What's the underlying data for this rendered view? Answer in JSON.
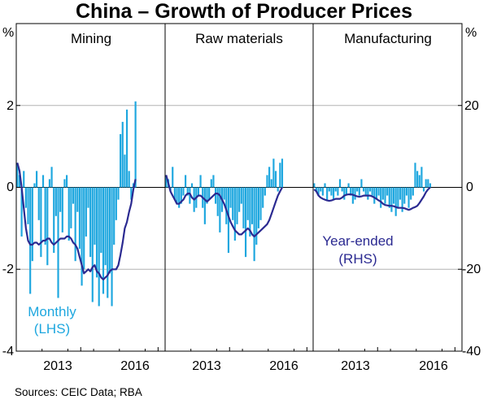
{
  "chart_data": {
    "type": "bar",
    "title": "China – Growth of Producer Prices",
    "source": "Sources:   CEIC Data; RBA",
    "left_axis": {
      "unit": "%",
      "ticks": [
        2,
        0,
        -2,
        -4
      ],
      "ylim": [
        -4,
        4
      ]
    },
    "right_axis": {
      "unit": "%",
      "ticks": [
        20,
        0,
        -20,
        -40
      ],
      "ylim": [
        -40,
        40
      ]
    },
    "colors": {
      "monthly": "#1ea7df",
      "year_ended": "#2b2a91",
      "grid": "#b4b4b4",
      "frame": "#000000"
    },
    "legend": {
      "monthly_line1": "Monthly",
      "monthly_line2": "(LHS)",
      "year_line1": "Year-ended",
      "year_line2": "(RHS)"
    },
    "panels": [
      {
        "name": "Mining",
        "x_start": 2011.0,
        "x_ticks": [
          "2013",
          "2016"
        ],
        "x_tick_values": [
          2013.5,
          2016.5
        ],
        "monthly_lhs": [
          0.6,
          0.3,
          -1.2,
          0.4,
          -0.5,
          -0.9,
          -2.6,
          -1.8,
          0.1,
          0.4,
          -0.8,
          -1.7,
          0.3,
          -1.4,
          -1.9,
          0.2,
          0.5,
          -1.6,
          -0.7,
          -2.7,
          -0.6,
          -1.1,
          0.2,
          0.3,
          -1.3,
          -1.0,
          -0.4,
          -1.8,
          -0.6,
          -1.5,
          -2.4,
          -2.0,
          -1.2,
          -0.5,
          -1.7,
          -2.8,
          -1.4,
          -2.2,
          -2.9,
          -1.6,
          -2.6,
          -1.9,
          -2.7,
          -2.1,
          -2.9,
          -1.4,
          -0.8,
          -0.3,
          1.3,
          1.6,
          0.8,
          1.9,
          0.4,
          -0.3,
          0.1,
          2.1
        ],
        "year_ended_rhs": [
          6,
          4,
          0,
          -5,
          -10,
          -13,
          -14,
          -14,
          -13.5,
          -13.5,
          -14,
          -13.5,
          -13,
          -13,
          -12.5,
          -12.5,
          -13.5,
          -14,
          -13.5,
          -13,
          -12.5,
          -12.5,
          -12.5,
          -12,
          -12,
          -12.5,
          -13.5,
          -14,
          -15,
          -17,
          -19,
          -21,
          -20.5,
          -20,
          -20.5,
          -19.5,
          -19,
          -20.5,
          -21,
          -22,
          -22.5,
          -22,
          -21.5,
          -20.5,
          -20,
          -20,
          -20,
          -19,
          -16.5,
          -13.5,
          -10,
          -8.5,
          -6,
          -4,
          -0.5,
          2
        ]
      },
      {
        "name": "Raw materials",
        "x_start": 2011.0,
        "x_ticks": [
          "2013",
          "2016"
        ],
        "x_tick_values": [
          2013.5,
          2016.5
        ],
        "monthly_lhs": [
          0.3,
          0.2,
          -0.1,
          0.5,
          -0.3,
          -0.4,
          -0.5,
          -0.4,
          -0.2,
          0.3,
          -0.2,
          -0.4,
          0.1,
          -0.6,
          -0.5,
          -0.2,
          0.3,
          -0.5,
          -0.9,
          -0.4,
          -0.3,
          0.2,
          0.3,
          -0.4,
          -0.7,
          -1.1,
          -0.6,
          -0.3,
          -0.9,
          -1.6,
          -0.5,
          -0.8,
          -1.3,
          -0.9,
          -0.6,
          -0.4,
          -1.0,
          -1.7,
          -0.8,
          -1.2,
          -0.9,
          -1.8,
          -1.4,
          -1.0,
          -0.8,
          -0.5,
          -0.2,
          0.3,
          0.5,
          0.2,
          0.7,
          0.4,
          -0.1,
          0.6,
          0.7
        ],
        "year_ended_rhs": [
          3,
          1,
          -1,
          -2,
          -3,
          -4,
          -4,
          -3.5,
          -3,
          -2,
          -1.5,
          -1.5,
          -2.5,
          -3,
          -2.5,
          -2,
          -2,
          -2.5,
          -3,
          -3.5,
          -3,
          -2.5,
          -2,
          -1.5,
          -1.5,
          -2,
          -3,
          -4,
          -5.5,
          -7,
          -8.5,
          -9.5,
          -10.5,
          -11,
          -11.5,
          -11.5,
          -11,
          -10.5,
          -10,
          -10.5,
          -11.5,
          -12,
          -11.5,
          -11,
          -10.5,
          -10,
          -9.5,
          -9,
          -8,
          -6.5,
          -5,
          -3.5,
          -2,
          -1,
          0
        ]
      },
      {
        "name": "Manufacturing",
        "x_start": 2011.0,
        "x_ticks": [
          "2013",
          "2016"
        ],
        "x_tick_values": [
          2013.5,
          2016.5
        ],
        "monthly_lhs": [
          0.1,
          -0.1,
          -0.2,
          -0.1,
          -0.2,
          0.1,
          -0.3,
          -0.1,
          -0.2,
          -0.3,
          -0.1,
          -0.2,
          0.2,
          -0.1,
          -0.3,
          -0.2,
          0.1,
          -0.2,
          -0.4,
          -0.3,
          -0.1,
          -0.2,
          0.2,
          -0.1,
          -0.2,
          -0.3,
          -0.1,
          -0.2,
          -0.4,
          -0.3,
          -0.2,
          -0.5,
          -0.3,
          -0.4,
          -0.2,
          -0.5,
          -0.6,
          -0.4,
          -0.7,
          -0.5,
          -0.3,
          -0.6,
          -0.4,
          -0.2,
          -0.5,
          -0.3,
          -0.2,
          0.6,
          0.4,
          0.3,
          0.5,
          -0.1,
          0.2,
          0.2,
          0.1
        ],
        "year_ended_rhs": [
          -0.5,
          -1,
          -2,
          -2.5,
          -2.8,
          -3,
          -3.2,
          -3.3,
          -3.2,
          -3,
          -2.8,
          -2.8,
          -2.8,
          -2.5,
          -2,
          -1.8,
          -1.7,
          -1.7,
          -1.8,
          -2,
          -2.2,
          -2.3,
          -2.2,
          -2,
          -2,
          -2,
          -2,
          -2.2,
          -2.5,
          -2.8,
          -3.2,
          -3.5,
          -4,
          -4.3,
          -4.4,
          -4.5,
          -4.5,
          -4.6,
          -4.8,
          -5,
          -5,
          -5,
          -5.1,
          -5.3,
          -5.5,
          -5.3,
          -5,
          -4.8,
          -4.5,
          -3.8,
          -3,
          -2.2,
          -1.2,
          -0.5,
          0
        ]
      }
    ]
  }
}
